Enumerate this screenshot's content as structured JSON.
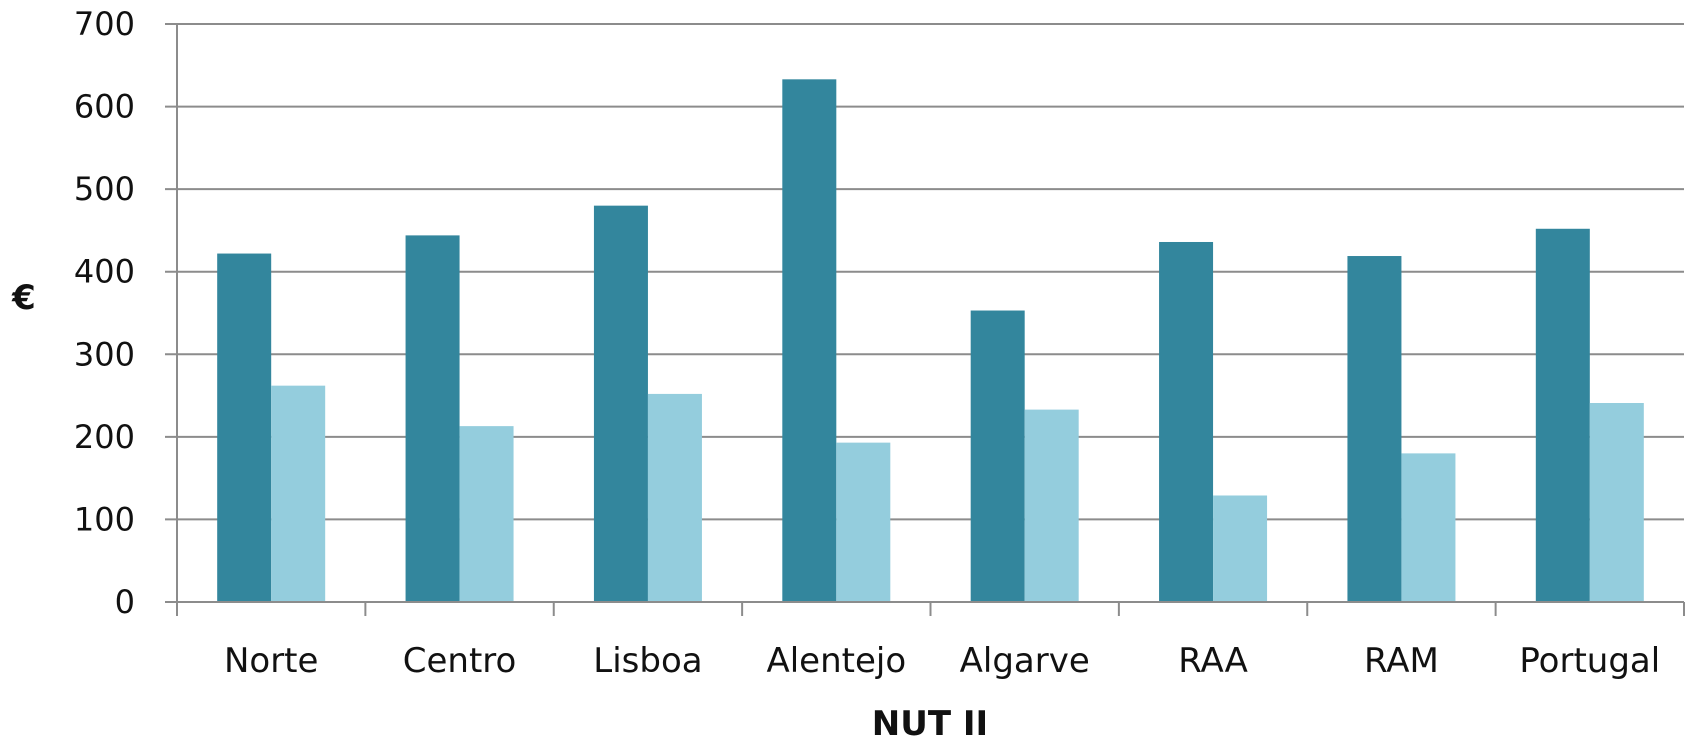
{
  "chart_data": {
    "type": "bar",
    "title": "",
    "xlabel": "NUT II",
    "ylabel": "€",
    "ylim": [
      0,
      700
    ],
    "yticks": [
      0,
      100,
      200,
      300,
      400,
      500,
      600,
      700
    ],
    "ytick_labels": [
      "0",
      "100",
      "200",
      "300",
      "400",
      "500",
      "600",
      "700"
    ],
    "grid": true,
    "legend": "none",
    "categories": [
      "Norte",
      "Centro",
      "Lisboa",
      "Alentejo",
      "Algarve",
      "RAA",
      "RAM",
      "Portugal"
    ],
    "series": [
      {
        "color": "#33869d",
        "values": [
          422,
          444,
          480,
          633,
          353,
          436,
          419,
          452
        ]
      },
      {
        "color": "#94cddd",
        "values": [
          262,
          213,
          252,
          193,
          233,
          129,
          180,
          241
        ]
      }
    ],
    "colors": {
      "grid": "#8c8c8c",
      "axis": "#8c8c8c",
      "text": "#111111"
    }
  }
}
